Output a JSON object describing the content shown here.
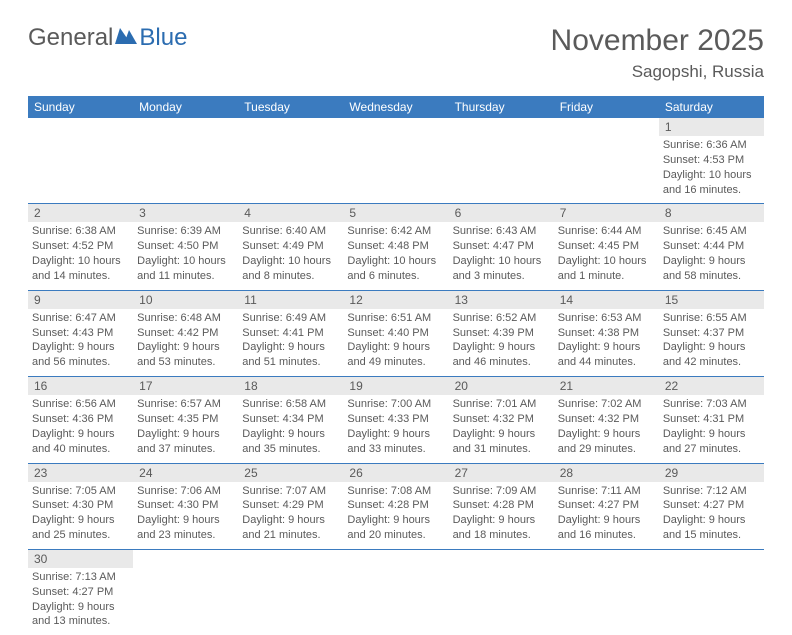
{
  "logo": {
    "general": "General",
    "blue": "Blue"
  },
  "title": "November 2025",
  "location": "Sagopshi, Russia",
  "colors": {
    "header_bg": "#3b7bbf",
    "header_text": "#ffffff",
    "daynum_bg": "#e9e9e9",
    "border": "#3b7bbf",
    "text": "#5a5a5a",
    "logo_blue": "#2b6cb0"
  },
  "day_headers": [
    "Sunday",
    "Monday",
    "Tuesday",
    "Wednesday",
    "Thursday",
    "Friday",
    "Saturday"
  ],
  "weeks": [
    {
      "nums": [
        "",
        "",
        "",
        "",
        "",
        "",
        "1"
      ],
      "info": [
        "",
        "",
        "",
        "",
        "",
        "",
        "Sunrise: 6:36 AM\nSunset: 4:53 PM\nDaylight: 10 hours and 16 minutes."
      ]
    },
    {
      "nums": [
        "2",
        "3",
        "4",
        "5",
        "6",
        "7",
        "8"
      ],
      "info": [
        "Sunrise: 6:38 AM\nSunset: 4:52 PM\nDaylight: 10 hours and 14 minutes.",
        "Sunrise: 6:39 AM\nSunset: 4:50 PM\nDaylight: 10 hours and 11 minutes.",
        "Sunrise: 6:40 AM\nSunset: 4:49 PM\nDaylight: 10 hours and 8 minutes.",
        "Sunrise: 6:42 AM\nSunset: 4:48 PM\nDaylight: 10 hours and 6 minutes.",
        "Sunrise: 6:43 AM\nSunset: 4:47 PM\nDaylight: 10 hours and 3 minutes.",
        "Sunrise: 6:44 AM\nSunset: 4:45 PM\nDaylight: 10 hours and 1 minute.",
        "Sunrise: 6:45 AM\nSunset: 4:44 PM\nDaylight: 9 hours and 58 minutes."
      ]
    },
    {
      "nums": [
        "9",
        "10",
        "11",
        "12",
        "13",
        "14",
        "15"
      ],
      "info": [
        "Sunrise: 6:47 AM\nSunset: 4:43 PM\nDaylight: 9 hours and 56 minutes.",
        "Sunrise: 6:48 AM\nSunset: 4:42 PM\nDaylight: 9 hours and 53 minutes.",
        "Sunrise: 6:49 AM\nSunset: 4:41 PM\nDaylight: 9 hours and 51 minutes.",
        "Sunrise: 6:51 AM\nSunset: 4:40 PM\nDaylight: 9 hours and 49 minutes.",
        "Sunrise: 6:52 AM\nSunset: 4:39 PM\nDaylight: 9 hours and 46 minutes.",
        "Sunrise: 6:53 AM\nSunset: 4:38 PM\nDaylight: 9 hours and 44 minutes.",
        "Sunrise: 6:55 AM\nSunset: 4:37 PM\nDaylight: 9 hours and 42 minutes."
      ]
    },
    {
      "nums": [
        "16",
        "17",
        "18",
        "19",
        "20",
        "21",
        "22"
      ],
      "info": [
        "Sunrise: 6:56 AM\nSunset: 4:36 PM\nDaylight: 9 hours and 40 minutes.",
        "Sunrise: 6:57 AM\nSunset: 4:35 PM\nDaylight: 9 hours and 37 minutes.",
        "Sunrise: 6:58 AM\nSunset: 4:34 PM\nDaylight: 9 hours and 35 minutes.",
        "Sunrise: 7:00 AM\nSunset: 4:33 PM\nDaylight: 9 hours and 33 minutes.",
        "Sunrise: 7:01 AM\nSunset: 4:32 PM\nDaylight: 9 hours and 31 minutes.",
        "Sunrise: 7:02 AM\nSunset: 4:32 PM\nDaylight: 9 hours and 29 minutes.",
        "Sunrise: 7:03 AM\nSunset: 4:31 PM\nDaylight: 9 hours and 27 minutes."
      ]
    },
    {
      "nums": [
        "23",
        "24",
        "25",
        "26",
        "27",
        "28",
        "29"
      ],
      "info": [
        "Sunrise: 7:05 AM\nSunset: 4:30 PM\nDaylight: 9 hours and 25 minutes.",
        "Sunrise: 7:06 AM\nSunset: 4:30 PM\nDaylight: 9 hours and 23 minutes.",
        "Sunrise: 7:07 AM\nSunset: 4:29 PM\nDaylight: 9 hours and 21 minutes.",
        "Sunrise: 7:08 AM\nSunset: 4:28 PM\nDaylight: 9 hours and 20 minutes.",
        "Sunrise: 7:09 AM\nSunset: 4:28 PM\nDaylight: 9 hours and 18 minutes.",
        "Sunrise: 7:11 AM\nSunset: 4:27 PM\nDaylight: 9 hours and 16 minutes.",
        "Sunrise: 7:12 AM\nSunset: 4:27 PM\nDaylight: 9 hours and 15 minutes."
      ]
    },
    {
      "nums": [
        "30",
        "",
        "",
        "",
        "",
        "",
        ""
      ],
      "info": [
        "Sunrise: 7:13 AM\nSunset: 4:27 PM\nDaylight: 9 hours and 13 minutes.",
        "",
        "",
        "",
        "",
        "",
        ""
      ]
    }
  ]
}
